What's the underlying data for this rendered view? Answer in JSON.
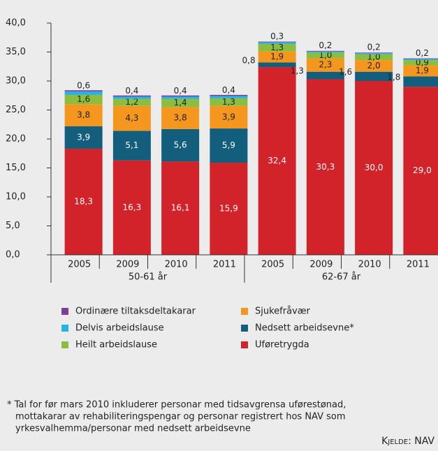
{
  "chart_data": {
    "type": "stacked_bar",
    "categories": [
      "2005",
      "2009",
      "2010",
      "2011",
      "2005",
      "2009",
      "2010",
      "2011"
    ],
    "groups": [
      {
        "label": "50-61 år",
        "span": 4
      },
      {
        "label": "62-67 år",
        "span": 4
      }
    ],
    "series": [
      {
        "name": "Uføretrygda",
        "color": "#d2232a",
        "values": [
          18.3,
          16.3,
          16.1,
          15.9,
          32.4,
          30.3,
          30.0,
          29.0
        ],
        "value_labels": [
          "18,3",
          "16,3",
          "16,1",
          "15,9",
          "32,4",
          "30,3",
          "30,0",
          "29,0"
        ]
      },
      {
        "name": "Nedsett arbeidsevne*",
        "color": "#135d7d",
        "values": [
          3.9,
          5.1,
          5.6,
          5.9,
          0.8,
          1.3,
          1.6,
          1.8
        ],
        "value_labels": [
          "3,9",
          "5,1",
          "5,6",
          "5,9",
          "0,8",
          "1,3",
          "1,6",
          "1,8"
        ]
      },
      {
        "name": "Sjukefråvær",
        "color": "#f5961e",
        "values": [
          3.8,
          4.3,
          3.8,
          3.9,
          1.9,
          2.3,
          2.0,
          1.9
        ],
        "value_labels": [
          "3,8",
          "4,3",
          "3,8",
          "3,9",
          "1,9",
          "2,3",
          "2,0",
          "1,9"
        ]
      },
      {
        "name": "Heilt arbeidslause",
        "color": "#8cbd3f",
        "values": [
          1.6,
          1.2,
          1.4,
          1.3,
          1.3,
          1.0,
          1.0,
          0.9
        ],
        "value_labels": [
          "1,6",
          "1,2",
          "1,4",
          "1,3",
          "1,3",
          "1,0",
          "1,0",
          "0,9"
        ]
      },
      {
        "name": "Delvis arbeidslause",
        "color": "#27b3e4",
        "values": [
          0.6,
          0.4,
          0.4,
          0.4,
          0.3,
          0.2,
          0.2,
          0.2
        ],
        "value_labels": [
          "0,6",
          "0,4",
          "0,4",
          "0,4",
          "0,3",
          "0,2",
          "0,2",
          "0,2"
        ]
      },
      {
        "name": "Ordinære tiltaksdeltakarar",
        "color": "#7d3f98",
        "values": [
          0.2,
          0.2,
          0.2,
          0.2,
          0.1,
          0.1,
          0.1,
          0.1
        ]
      }
    ],
    "legend_order": [
      5,
      2,
      4,
      1,
      3,
      0
    ],
    "ylim": [
      0,
      40
    ],
    "yticks": [
      {
        "value": 0,
        "label": "0,0"
      },
      {
        "value": 5,
        "label": "5,0"
      },
      {
        "value": 10,
        "label": "10,0"
      },
      {
        "value": 15,
        "label": "15,0"
      },
      {
        "value": 20,
        "label": "20,0"
      },
      {
        "value": 25,
        "label": "25,0"
      },
      {
        "value": 30,
        "label": "30,0"
      },
      {
        "value": 35,
        "label": "35,0"
      },
      {
        "value": 40,
        "label": "40,0"
      }
    ],
    "grid": false,
    "footnote": [
      "* Tal for før mars 2010 inkluderer personar med tidsavgrensa uførestønad,",
      "mottakarar av rehabiliteringspengar og personar registrert hos NAV som",
      "yrkesvalhemma/personar med nedsett arbeidsevne"
    ],
    "source": "Kjelde: NAV"
  }
}
